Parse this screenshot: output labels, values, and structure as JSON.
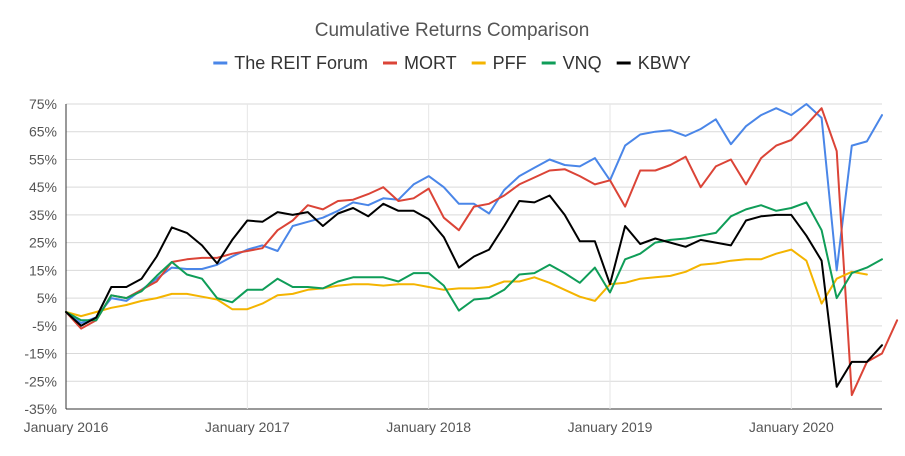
{
  "chart_data": {
    "type": "line",
    "title": "Cumulative Returns Comparison",
    "xlabel": "",
    "ylabel": "",
    "ylim": [
      -35,
      75
    ],
    "yticks": [
      75,
      65,
      55,
      45,
      35,
      25,
      15,
      5,
      -5,
      -15,
      -25,
      -35
    ],
    "ytick_labels": [
      "75%",
      "65%",
      "55%",
      "45%",
      "35%",
      "25%",
      "15%",
      "5%",
      "-5%",
      "-15%",
      "-25%",
      "-35%"
    ],
    "xtick_labels": [
      "January 2016",
      "January 2017",
      "January 2018",
      "January 2019",
      "January 2020"
    ],
    "xtick_months": [
      0,
      12,
      24,
      36,
      48
    ],
    "xlim": [
      0,
      54
    ],
    "grid": "horizontal",
    "legend_position": "top",
    "series": [
      {
        "name": "The REIT Forum",
        "color": "#4a86e8",
        "values": [
          0,
          -4,
          -2,
          5,
          4,
          8,
          12,
          16,
          15.5,
          15.5,
          17,
          20,
          22.5,
          24,
          22,
          31,
          32.5,
          34,
          36.5,
          39.5,
          38.5,
          41,
          40.5,
          46,
          49,
          45,
          39,
          39,
          35.5,
          44,
          49,
          52,
          55,
          53,
          52.5,
          55.5,
          47.5,
          60,
          64,
          65,
          65.5,
          63.5,
          66,
          69.5,
          60.5,
          67,
          71,
          73.5,
          71,
          75,
          70,
          15,
          60,
          61.5,
          71
        ]
      },
      {
        "name": "MORT",
        "color": "#db4437",
        "values": [
          0,
          -6,
          -3,
          6,
          5,
          8,
          11,
          18,
          19,
          19.5,
          19.5,
          21,
          22,
          23,
          29.5,
          33,
          38.5,
          37,
          40,
          40.5,
          42.5,
          45,
          40,
          41,
          44.5,
          34,
          29.5,
          38,
          39,
          42,
          46,
          48.5,
          51,
          51.5,
          49,
          46,
          47.5,
          38,
          51,
          51,
          53,
          56,
          45,
          52.5,
          55,
          46,
          55.5,
          60,
          62,
          67.5,
          73.5,
          58,
          -30,
          -18,
          -15,
          -3
        ]
      },
      {
        "name": "PFF",
        "color": "#f4b400",
        "values": [
          0,
          -1.5,
          0,
          1.5,
          2.5,
          4,
          5,
          6.5,
          6.5,
          5.5,
          4.5,
          1,
          1,
          3,
          6,
          6.5,
          8,
          8.5,
          9.5,
          10,
          10,
          9.5,
          10,
          10,
          9,
          8,
          8.5,
          8.5,
          9,
          11,
          11,
          12.5,
          10.5,
          8,
          5.5,
          4,
          10,
          10.5,
          12,
          12.5,
          13,
          14.5,
          17,
          17.5,
          18.5,
          19,
          19,
          21,
          22.5,
          18.5,
          3,
          12,
          14.5,
          13.5
        ]
      },
      {
        "name": "VNQ",
        "color": "#0f9d58",
        "values": [
          0,
          -3,
          -3,
          6,
          5,
          7.5,
          13,
          18,
          13.5,
          12,
          5,
          3.5,
          8,
          8,
          12,
          9,
          9,
          8.5,
          11,
          12.5,
          12.5,
          12.5,
          11,
          14,
          14,
          9.5,
          0.5,
          4.5,
          5,
          8,
          13.5,
          14,
          17,
          14,
          10.5,
          16,
          7,
          19,
          21,
          25,
          26,
          26.5,
          27.5,
          28.5,
          34.5,
          37,
          38.5,
          36.5,
          37.5,
          39.5,
          29.5,
          5,
          14,
          16,
          19
        ]
      },
      {
        "name": "KBWY",
        "color": "#000000",
        "values": [
          0,
          -5,
          -2,
          9,
          9,
          12,
          20,
          30.5,
          28.5,
          24,
          17.5,
          26,
          33,
          32.5,
          36,
          35,
          36,
          31,
          35.5,
          37.5,
          34.5,
          39,
          36.5,
          36.5,
          33.5,
          27,
          16,
          20,
          22.5,
          31,
          40,
          39.5,
          42,
          35,
          25.5,
          25.5,
          10,
          31,
          24.5,
          26.5,
          25,
          23.5,
          26,
          25,
          24,
          33,
          34.5,
          35,
          35,
          27.5,
          18.5,
          -27,
          -18,
          -18,
          -12
        ]
      }
    ]
  }
}
